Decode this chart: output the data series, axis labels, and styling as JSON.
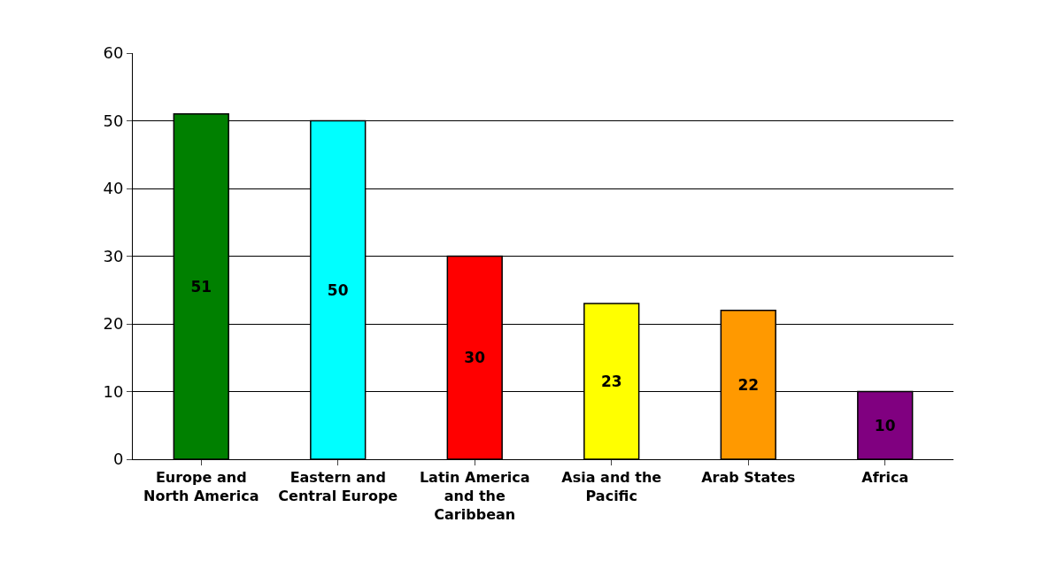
{
  "chart_data": {
    "type": "bar",
    "categories": [
      "Europe and North America",
      "Eastern and Central Europe",
      "Latin America and the Caribbean",
      "Asia and the Pacific",
      "Arab States",
      "Africa"
    ],
    "values": [
      51,
      50,
      30,
      23,
      22,
      10
    ],
    "colors": [
      "#008000",
      "#00ffff",
      "#ff0000",
      "#ffff00",
      "#ff9900",
      "#800080"
    ],
    "ylim": [
      0,
      60
    ],
    "yticks": [
      0,
      10,
      20,
      30,
      40,
      50,
      60
    ],
    "grid": "y",
    "data_labels": true
  }
}
